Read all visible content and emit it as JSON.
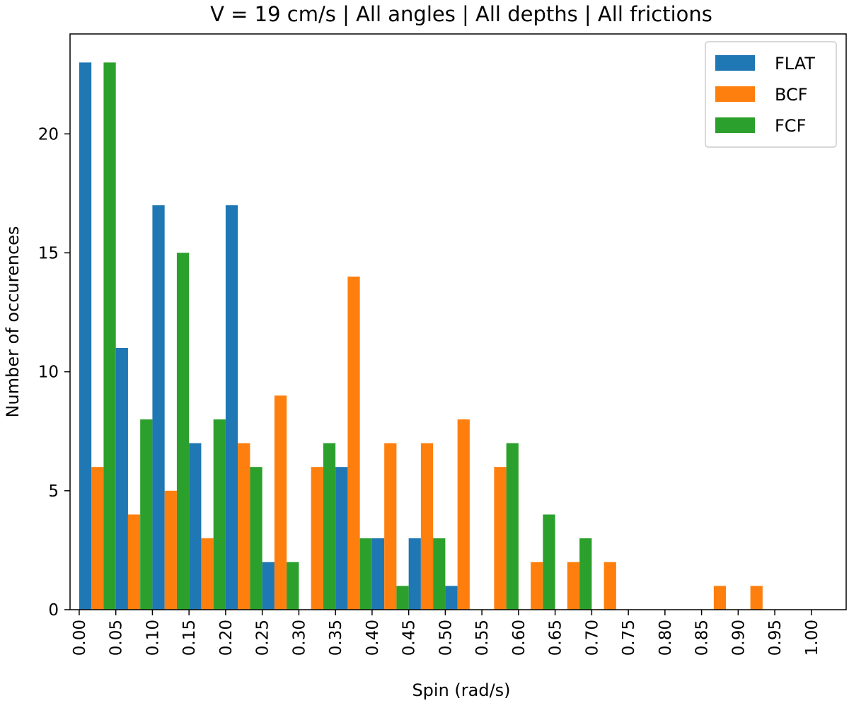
{
  "chart_data": {
    "type": "bar",
    "title": "V = 19 cm/s | All angles | All depths | All frictions",
    "xlabel": "Spin (rad/s)",
    "ylabel": "Number of occurences",
    "bin_edges": [
      0.0,
      0.05,
      0.1,
      0.15,
      0.2,
      0.25,
      0.3,
      0.35,
      0.4,
      0.45,
      0.5,
      0.55,
      0.6,
      0.65,
      0.7,
      0.75,
      0.8,
      0.85,
      0.9,
      0.95,
      1.0
    ],
    "x_ticks": [
      "0.00",
      "0.05",
      "0.10",
      "0.15",
      "0.20",
      "0.25",
      "0.30",
      "0.35",
      "0.40",
      "0.45",
      "0.50",
      "0.55",
      "0.60",
      "0.65",
      "0.70",
      "0.75",
      "0.80",
      "0.85",
      "0.90",
      "0.95",
      "1.00"
    ],
    "y_ticks": [
      0,
      5,
      10,
      15,
      20
    ],
    "ylim": [
      0,
      24.2
    ],
    "xlim": [
      -0.0125,
      1.0475
    ],
    "legend_position": "top-right",
    "grid": false,
    "series": [
      {
        "name": "FLAT",
        "color": "#1f77b4",
        "values": [
          23,
          11,
          17,
          7,
          17,
          2,
          0,
          6,
          3,
          3,
          1,
          0,
          0,
          0,
          0,
          0,
          0,
          0,
          0,
          0
        ]
      },
      {
        "name": "BCF",
        "color": "#ff7f0e",
        "values": [
          6,
          4,
          5,
          3,
          7,
          9,
          6,
          14,
          7,
          7,
          8,
          6,
          2,
          2,
          2,
          0,
          0,
          1,
          1,
          0
        ]
      },
      {
        "name": "FCF",
        "color": "#2ca02c",
        "values": [
          23,
          8,
          15,
          8,
          6,
          2,
          7,
          3,
          1,
          3,
          0,
          7,
          4,
          3,
          0,
          0,
          0,
          0,
          0,
          0
        ]
      }
    ]
  }
}
